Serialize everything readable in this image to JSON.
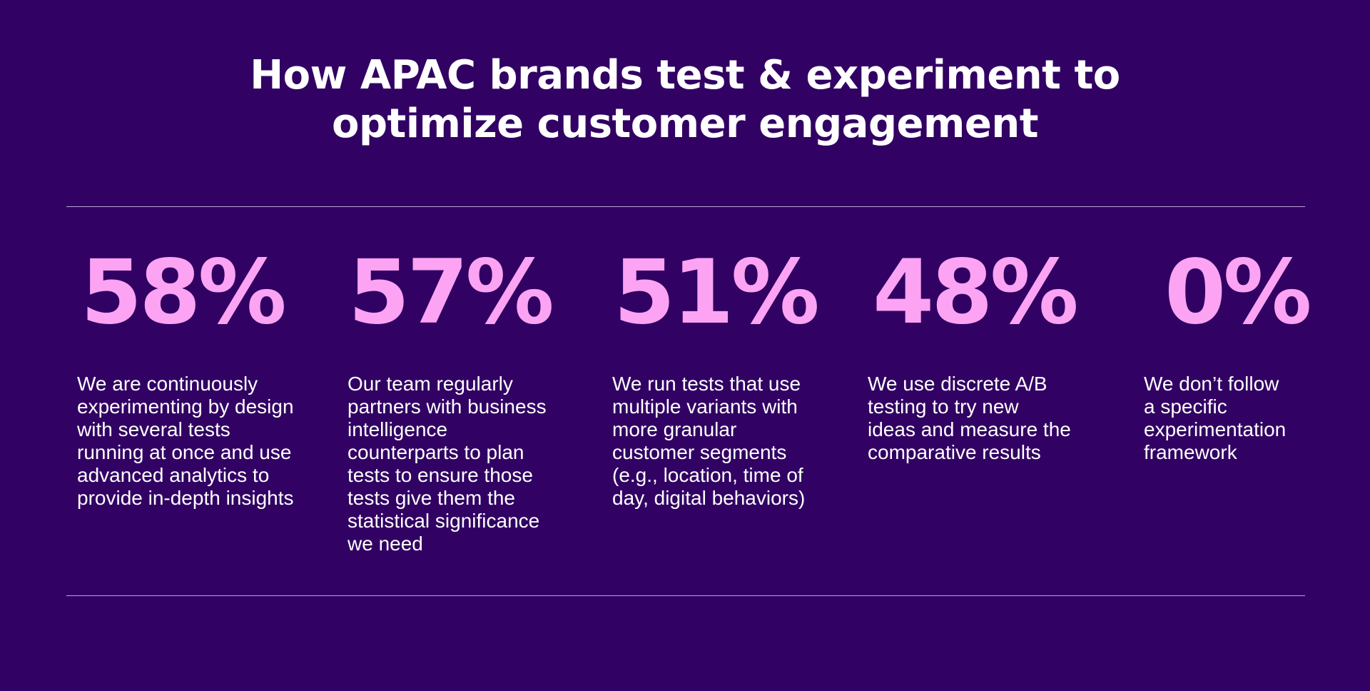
{
  "header": {
    "title_line1": "How APAC brands test & experiment to",
    "title_line2": "optimize customer engagement"
  },
  "colors": {
    "background": "#310263",
    "percentage": "#fca3f4",
    "text": "#ffffff",
    "divider": "#b9a3d6"
  },
  "stats": [
    {
      "value": "58%",
      "description_lines": [
        "We are continuously",
        "experimenting by design",
        "with several tests",
        "running at once and use",
        "advanced analytics to",
        "provide in-depth insights"
      ]
    },
    {
      "value": "57%",
      "description_lines": [
        "Our team regularly",
        "partners with business",
        "intelligence",
        "counterparts to plan",
        "tests to ensure those",
        "tests give them the",
        "statistical significance",
        "we need"
      ]
    },
    {
      "value": "51%",
      "description_lines": [
        "We run tests that use",
        "multiple variants with",
        "more granular",
        "customer segments",
        "(e.g., location, time of",
        "day, digital behaviors)"
      ]
    },
    {
      "value": "48%",
      "description_lines": [
        "We use discrete A/B",
        "testing to try new",
        "ideas and measure the",
        "comparative results"
      ]
    },
    {
      "value": "0%",
      "description_lines": [
        "We don’t follow",
        "a specific",
        "experimentation",
        "framework"
      ]
    }
  ]
}
